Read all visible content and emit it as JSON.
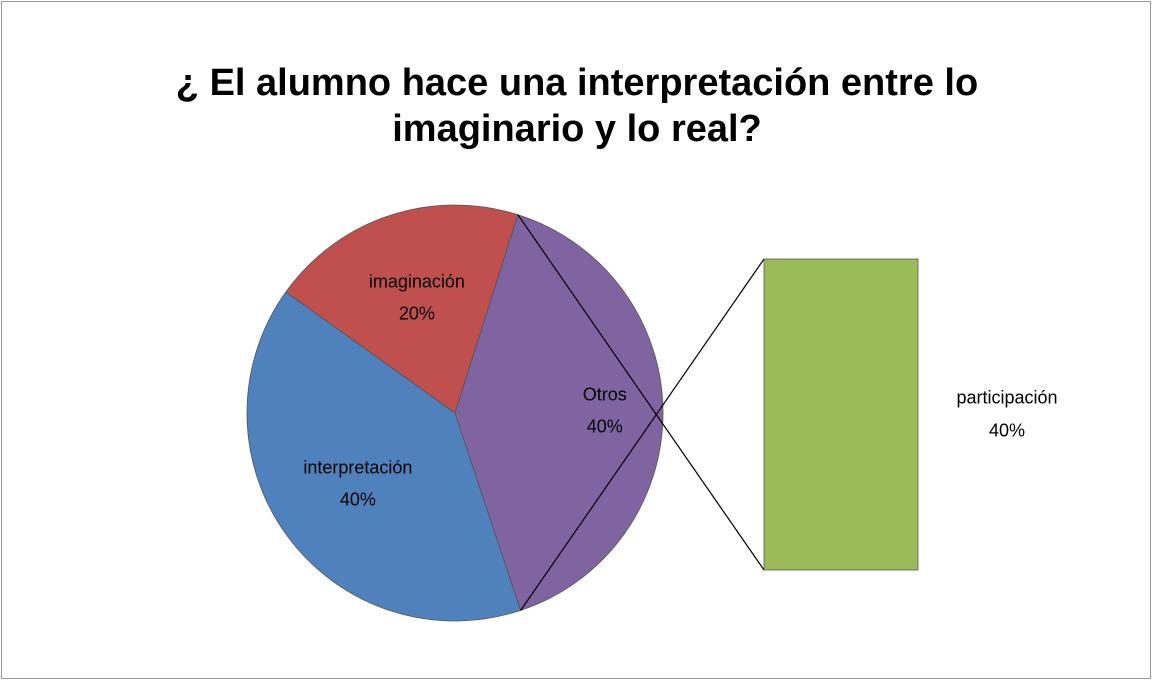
{
  "chart_data": {
    "type": "pie",
    "title": "¿ El alumno hace una interpretación entre lo imaginario y lo real?",
    "categories": [
      "interpretación",
      "imaginación",
      "Otros"
    ],
    "values": [
      40,
      20,
      40
    ],
    "value_labels": [
      "40%",
      "20%",
      "40%"
    ],
    "colors": [
      "#4f81bd",
      "#c0504d",
      "#8064a2"
    ],
    "secondary": {
      "categories": [
        "participación"
      ],
      "values": [
        40
      ],
      "value_labels": [
        "40%"
      ],
      "colors": [
        "#9bbb59"
      ]
    }
  }
}
